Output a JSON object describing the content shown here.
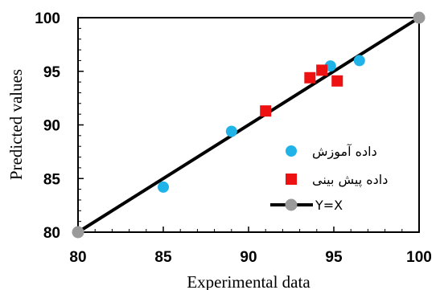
{
  "chart_data": {
    "type": "scatter",
    "xlabel": "Experimental data",
    "ylabel": "Predicted values",
    "xlim": [
      80,
      100
    ],
    "ylim": [
      80,
      100
    ],
    "x_ticks": [
      "80",
      "85",
      "90",
      "95",
      "100"
    ],
    "y_ticks": [
      "80",
      "85",
      "90",
      "95",
      "100"
    ],
    "grid": false,
    "legend_position": "right",
    "series": [
      {
        "name": "داده آموزش",
        "marker": "circle",
        "color": "#1fb3e8",
        "points": [
          [
            85.0,
            84.2
          ],
          [
            89.0,
            89.4
          ],
          [
            94.8,
            95.5
          ],
          [
            96.5,
            96.0
          ]
        ]
      },
      {
        "name": "داده پیش بینی",
        "marker": "square",
        "color": "#ee1111",
        "points": [
          [
            91.0,
            91.3
          ],
          [
            93.6,
            94.4
          ],
          [
            94.3,
            95.1
          ],
          [
            95.2,
            94.1
          ]
        ]
      },
      {
        "name": "Y=X",
        "marker": "line",
        "color": "#000000",
        "endpoint_color": "#9a9a9a",
        "points": [
          [
            80,
            80
          ],
          [
            100,
            100
          ]
        ]
      }
    ]
  }
}
